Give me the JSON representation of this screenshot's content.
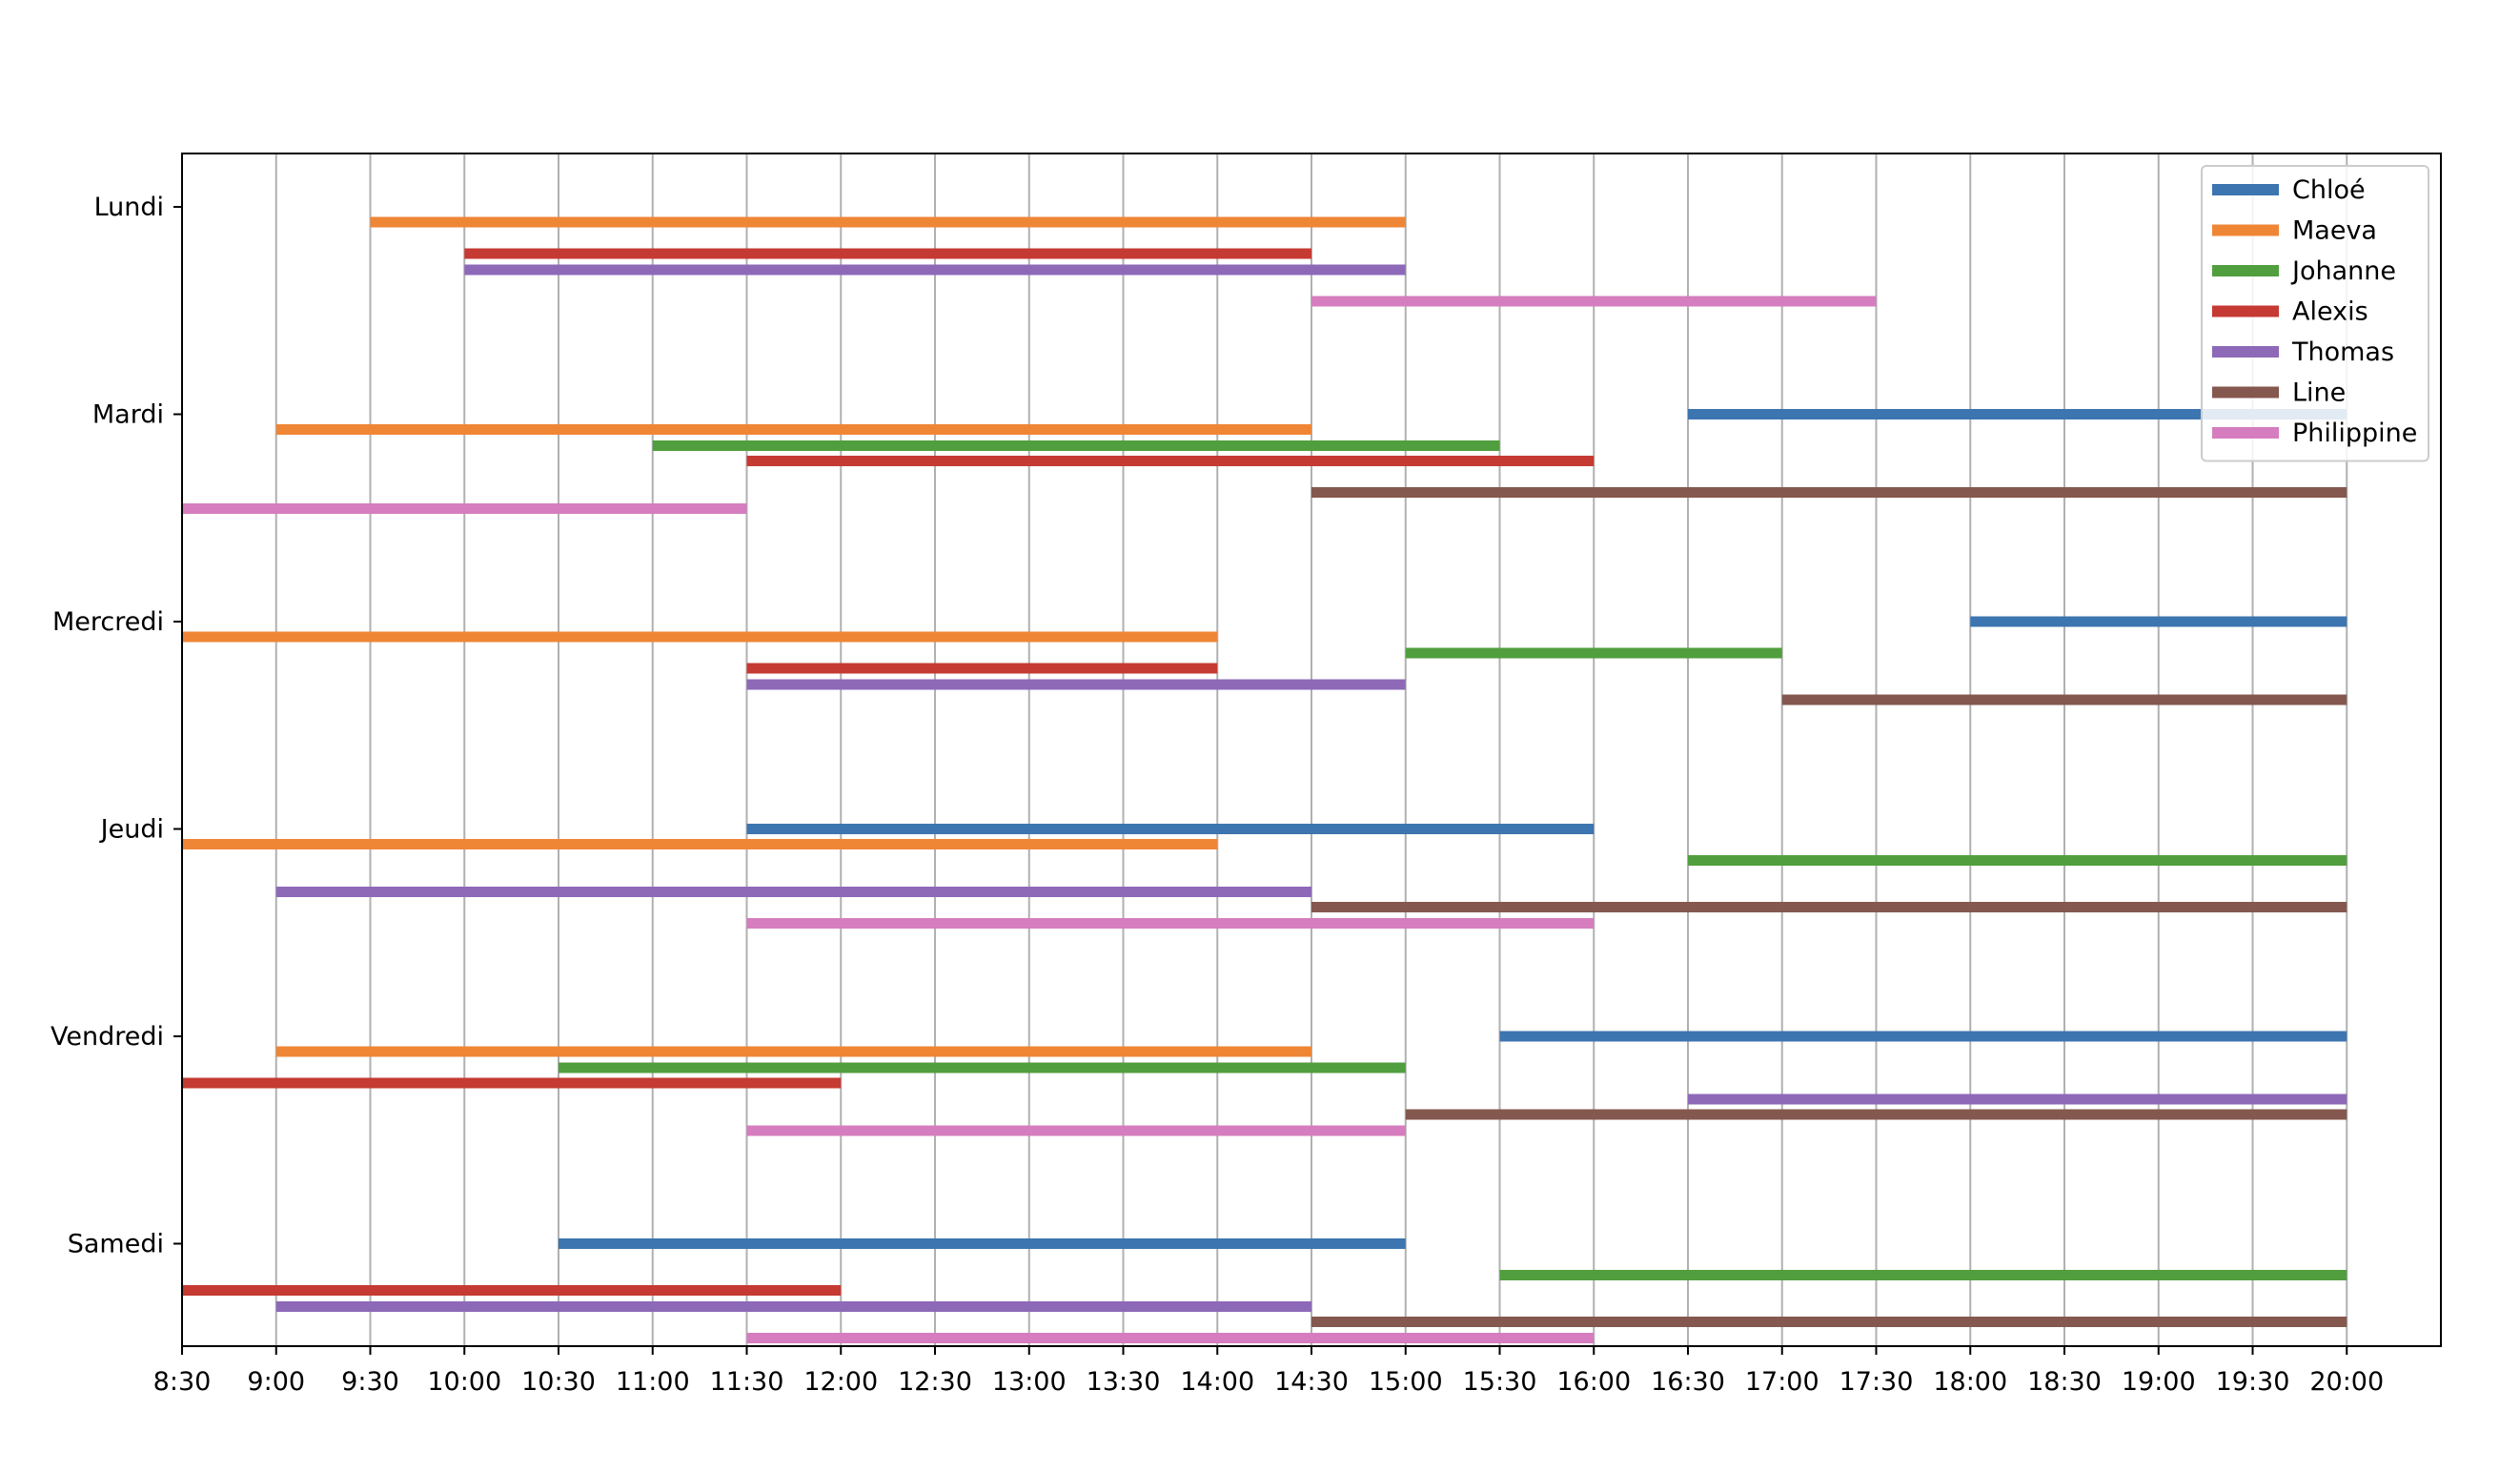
{
  "chart_data": {
    "type": "gantt",
    "title": "",
    "xlabel": "",
    "ylabel": "",
    "x_ticks": [
      "8:30",
      "9:00",
      "9:30",
      "10:00",
      "10:30",
      "11:00",
      "11:30",
      "12:00",
      "12:30",
      "13:00",
      "13:30",
      "14:00",
      "14:30",
      "15:00",
      "15:30",
      "16:00",
      "16:30",
      "17:00",
      "17:30",
      "18:00",
      "18:30",
      "19:00",
      "19:30",
      "20:00"
    ],
    "xlim": [
      "8:30",
      "20:30"
    ],
    "days": [
      "Lundi",
      "Mardi",
      "Mercredi",
      "Jeudi",
      "Vendredi",
      "Samedi"
    ],
    "grid": "vertical",
    "legend_position": "top-right",
    "series": [
      {
        "name": "Chloé",
        "color": "#3c75af",
        "intervals": [
          {
            "day": "Mardi",
            "start": "16:30",
            "end": "20:00"
          },
          {
            "day": "Mercredi",
            "start": "18:00",
            "end": "20:00"
          },
          {
            "day": "Jeudi",
            "start": "11:30",
            "end": "16:00"
          },
          {
            "day": "Vendredi",
            "start": "15:30",
            "end": "20:00"
          },
          {
            "day": "Samedi",
            "start": "10:30",
            "end": "15:00"
          }
        ]
      },
      {
        "name": "Maeva",
        "color": "#ef8636",
        "intervals": [
          {
            "day": "Lundi",
            "start": "9:30",
            "end": "15:00"
          },
          {
            "day": "Mardi",
            "start": "9:00",
            "end": "14:30"
          },
          {
            "day": "Mercredi",
            "start": "8:30",
            "end": "14:00"
          },
          {
            "day": "Jeudi",
            "start": "8:30",
            "end": "14:00"
          },
          {
            "day": "Vendredi",
            "start": "9:00",
            "end": "14:30"
          }
        ]
      },
      {
        "name": "Johanne",
        "color": "#519e3e",
        "intervals": [
          {
            "day": "Mardi",
            "start": "11:00",
            "end": "15:30"
          },
          {
            "day": "Mercredi",
            "start": "15:00",
            "end": "17:00"
          },
          {
            "day": "Jeudi",
            "start": "16:30",
            "end": "20:00"
          },
          {
            "day": "Vendredi",
            "start": "10:30",
            "end": "15:00"
          },
          {
            "day": "Samedi",
            "start": "15:30",
            "end": "20:00"
          }
        ]
      },
      {
        "name": "Alexis",
        "color": "#c53a32",
        "intervals": [
          {
            "day": "Lundi",
            "start": "10:00",
            "end": "14:30"
          },
          {
            "day": "Mardi",
            "start": "11:30",
            "end": "16:00"
          },
          {
            "day": "Mercredi",
            "start": "11:30",
            "end": "14:00"
          },
          {
            "day": "Vendredi",
            "start": "8:30",
            "end": "12:00"
          },
          {
            "day": "Samedi",
            "start": "8:30",
            "end": "12:00"
          }
        ]
      },
      {
        "name": "Thomas",
        "color": "#8d69b8",
        "intervals": [
          {
            "day": "Lundi",
            "start": "10:00",
            "end": "15:00"
          },
          {
            "day": "Mercredi",
            "start": "11:30",
            "end": "15:00"
          },
          {
            "day": "Jeudi",
            "start": "9:00",
            "end": "14:30"
          },
          {
            "day": "Vendredi",
            "start": "16:30",
            "end": "20:00"
          },
          {
            "day": "Samedi",
            "start": "9:00",
            "end": "14:30"
          }
        ]
      },
      {
        "name": "Line",
        "color": "#84584e",
        "intervals": [
          {
            "day": "Mardi",
            "start": "14:30",
            "end": "20:00"
          },
          {
            "day": "Mercredi",
            "start": "17:00",
            "end": "20:00"
          },
          {
            "day": "Jeudi",
            "start": "14:30",
            "end": "20:00"
          },
          {
            "day": "Vendredi",
            "start": "15:00",
            "end": "20:00"
          },
          {
            "day": "Samedi",
            "start": "14:30",
            "end": "20:00"
          }
        ]
      },
      {
        "name": "Philippine",
        "color": "#d57dbe",
        "intervals": [
          {
            "day": "Lundi",
            "start": "14:30",
            "end": "17:30"
          },
          {
            "day": "Mardi",
            "start": "8:30",
            "end": "11:30"
          },
          {
            "day": "Jeudi",
            "start": "11:30",
            "end": "16:00"
          },
          {
            "day": "Vendredi",
            "start": "11:30",
            "end": "15:00"
          },
          {
            "day": "Samedi",
            "start": "11:30",
            "end": "16:00"
          }
        ]
      }
    ]
  }
}
